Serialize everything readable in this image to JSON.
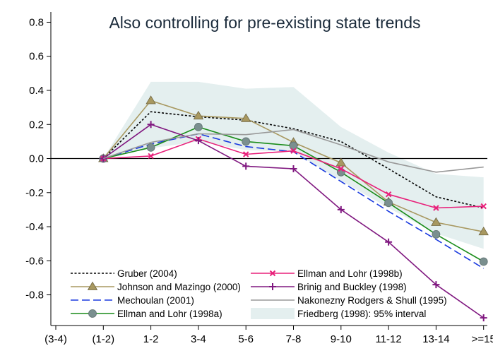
{
  "chart_data": {
    "type": "line",
    "title": "Also controlling for pre-existing state trends",
    "xlabel": "",
    "ylabel": "",
    "categories": [
      "(3-4)",
      "(1-2)",
      "1-2",
      "3-4",
      "5-6",
      "7-8",
      "9-10",
      "11-12",
      "13-14",
      ">=15"
    ],
    "ylim": [
      -0.98,
      0.86
    ],
    "yticks": [
      -0.8,
      -0.6,
      -0.4,
      -0.2,
      0.0,
      0.2,
      0.4,
      0.6,
      0.8
    ],
    "ytick_labels": [
      "-0.8",
      "-0.6",
      "-0.4",
      "-0.2",
      "0.0",
      "0.2",
      "0.4",
      "0.6",
      "0.8"
    ],
    "zero_line": true,
    "grid": false,
    "legend_position": "bottom-inside",
    "series": [
      {
        "name": "Gruber (2004)",
        "color": "#000000",
        "style": "dotted",
        "marker": "none",
        "values": [
          null,
          0.0,
          0.275,
          0.245,
          0.225,
          0.175,
          0.1,
          -0.06,
          -0.225,
          -0.29
        ]
      },
      {
        "name": "Johnson and Mazingo (2000)",
        "color": "#a89860",
        "style": "solid",
        "marker": "triangle",
        "values": [
          null,
          0.0,
          0.34,
          0.25,
          0.235,
          0.095,
          -0.025,
          -0.255,
          -0.375,
          -0.43
        ]
      },
      {
        "name": "Mechoulan (2001)",
        "color": "#1a3adf",
        "style": "dashed",
        "marker": "none",
        "values": [
          null,
          0.0,
          0.085,
          0.145,
          0.07,
          0.04,
          -0.135,
          -0.31,
          -0.475,
          -0.645
        ]
      },
      {
        "name": "Ellman and Lohr (1998a)",
        "color": "#1a8c1a",
        "style": "solid",
        "marker": "circle",
        "values": [
          null,
          0.0,
          0.065,
          0.185,
          0.1,
          0.075,
          -0.08,
          -0.26,
          -0.445,
          -0.605
        ]
      },
      {
        "name": "Ellman and Lohr (1998b)",
        "color": "#e8207a",
        "style": "solid",
        "marker": "x",
        "values": [
          null,
          0.0,
          0.015,
          0.115,
          0.025,
          0.045,
          -0.06,
          -0.21,
          -0.29,
          -0.28
        ]
      },
      {
        "name": "Brinig and Buckley (1998)",
        "color": "#801880",
        "style": "solid",
        "marker": "plus",
        "values": [
          null,
          0.0,
          0.2,
          0.105,
          -0.045,
          -0.06,
          -0.3,
          -0.49,
          -0.74,
          -0.935
        ]
      },
      {
        "name": "Nakonezny Rodgers & Shull (1995)",
        "color": "#999999",
        "style": "solid",
        "marker": "none",
        "values": [
          null,
          0.0,
          0.095,
          0.145,
          0.14,
          0.17,
          0.08,
          -0.02,
          -0.08,
          -0.05
        ]
      }
    ],
    "band": {
      "name": "Friedberg (1998): 95% interval",
      "color": "#e4efef",
      "upper": [
        null,
        0.0,
        0.45,
        0.45,
        0.41,
        0.42,
        0.185,
        0.035,
        -0.09,
        -0.11
      ],
      "lower": [
        null,
        0.0,
        0.06,
        0.1,
        0.05,
        0.04,
        -0.13,
        -0.29,
        -0.44,
        -0.53
      ]
    }
  }
}
